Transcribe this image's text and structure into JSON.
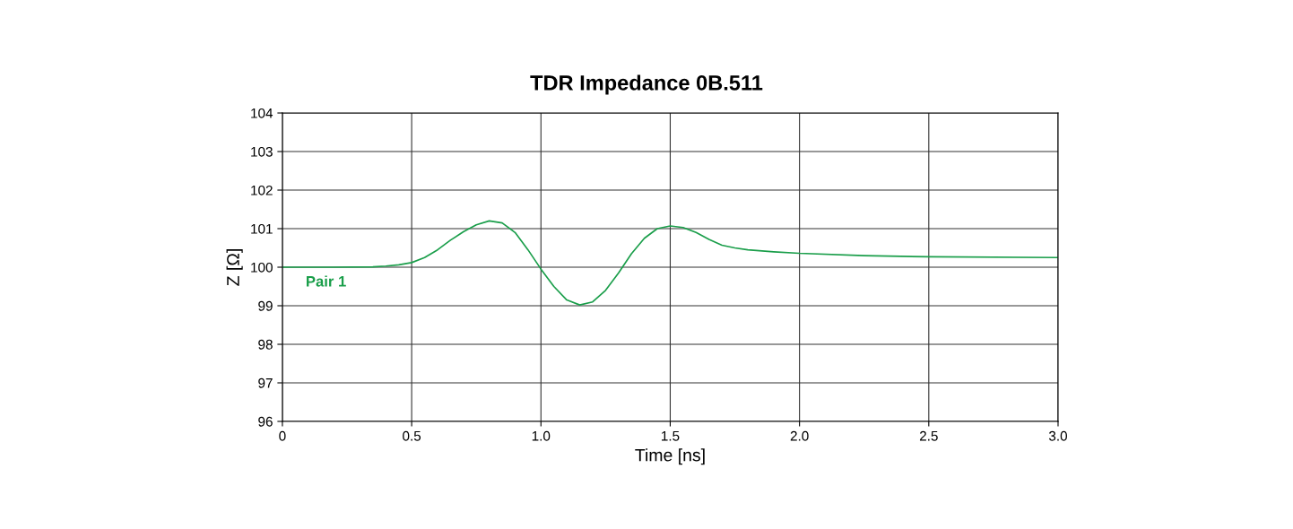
{
  "chart_data": {
    "type": "line",
    "title": "TDR Impedance 0B.511",
    "xlabel": "Time [ns]",
    "ylabel": "Z [Ω]",
    "x": [
      0,
      0.2,
      0.35,
      0.4,
      0.45,
      0.5,
      0.55,
      0.6,
      0.65,
      0.7,
      0.75,
      0.8,
      0.85,
      0.9,
      0.95,
      1.0,
      1.05,
      1.1,
      1.15,
      1.2,
      1.25,
      1.3,
      1.35,
      1.4,
      1.45,
      1.5,
      1.55,
      1.6,
      1.65,
      1.7,
      1.75,
      1.8,
      1.9,
      2.0,
      2.25,
      2.5,
      3.0
    ],
    "series": [
      {
        "name": "Pair 1",
        "color": "#1a9e4a",
        "values": [
          100.0,
          100.0,
          100.01,
          100.03,
          100.06,
          100.12,
          100.25,
          100.45,
          100.7,
          100.92,
          101.1,
          101.2,
          101.15,
          100.9,
          100.45,
          99.95,
          99.5,
          99.15,
          99.02,
          99.1,
          99.4,
          99.85,
          100.35,
          100.75,
          101.0,
          101.07,
          101.03,
          100.9,
          100.72,
          100.57,
          100.5,
          100.45,
          100.4,
          100.36,
          100.3,
          100.27,
          100.25
        ]
      }
    ],
    "xlim": [
      0,
      3.0
    ],
    "xticks": [
      0,
      {
        "value": 0.5,
        "label": "0.5"
      },
      {
        "value": 1,
        "label": "1.0"
      },
      {
        "value": 1.5,
        "label": "1.5"
      },
      {
        "value": 2,
        "label": "2.0"
      },
      {
        "value": 2.5,
        "label": "2.5"
      },
      {
        "value": 3,
        "label": "3.0"
      }
    ],
    "ylim": [
      96,
      104
    ],
    "yticks": [
      96,
      97,
      98,
      99,
      100,
      101,
      102,
      103,
      104
    ],
    "grid": true,
    "marker": "none",
    "line_style": "solid"
  }
}
